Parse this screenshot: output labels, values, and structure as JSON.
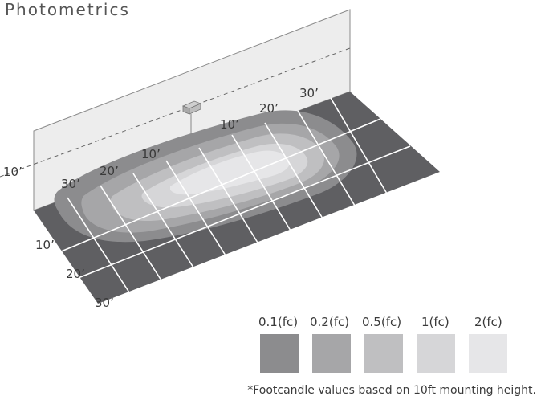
{
  "title": "Photometrics",
  "wall_labels": {
    "mount_height": "10’",
    "back_near_30": "30’",
    "back_20_left": "20’",
    "back_10_left": "10’",
    "back_10_right": "10’",
    "back_20_right": "20’",
    "back_30_right": "30’"
  },
  "front_labels": [
    "10’",
    "20’",
    "30’"
  ],
  "legend": [
    {
      "label": "0.1(fc)",
      "color": "#8c8c8e"
    },
    {
      "label": "0.2(fc)",
      "color": "#a6a6a8"
    },
    {
      "label": "0.5(fc)",
      "color": "#bfbfc1"
    },
    {
      "label": "1(fc)",
      "color": "#d6d6d8"
    },
    {
      "label": "2(fc)",
      "color": "#e6e6e8"
    }
  ],
  "footnote": "*Footcandle values based on 10ft mounting height.",
  "colors": {
    "floor": "#5f5f62",
    "wall": "#ececec",
    "grid": "#ffffff"
  },
  "icons": {
    "fixture": "light-fixture-icon"
  }
}
